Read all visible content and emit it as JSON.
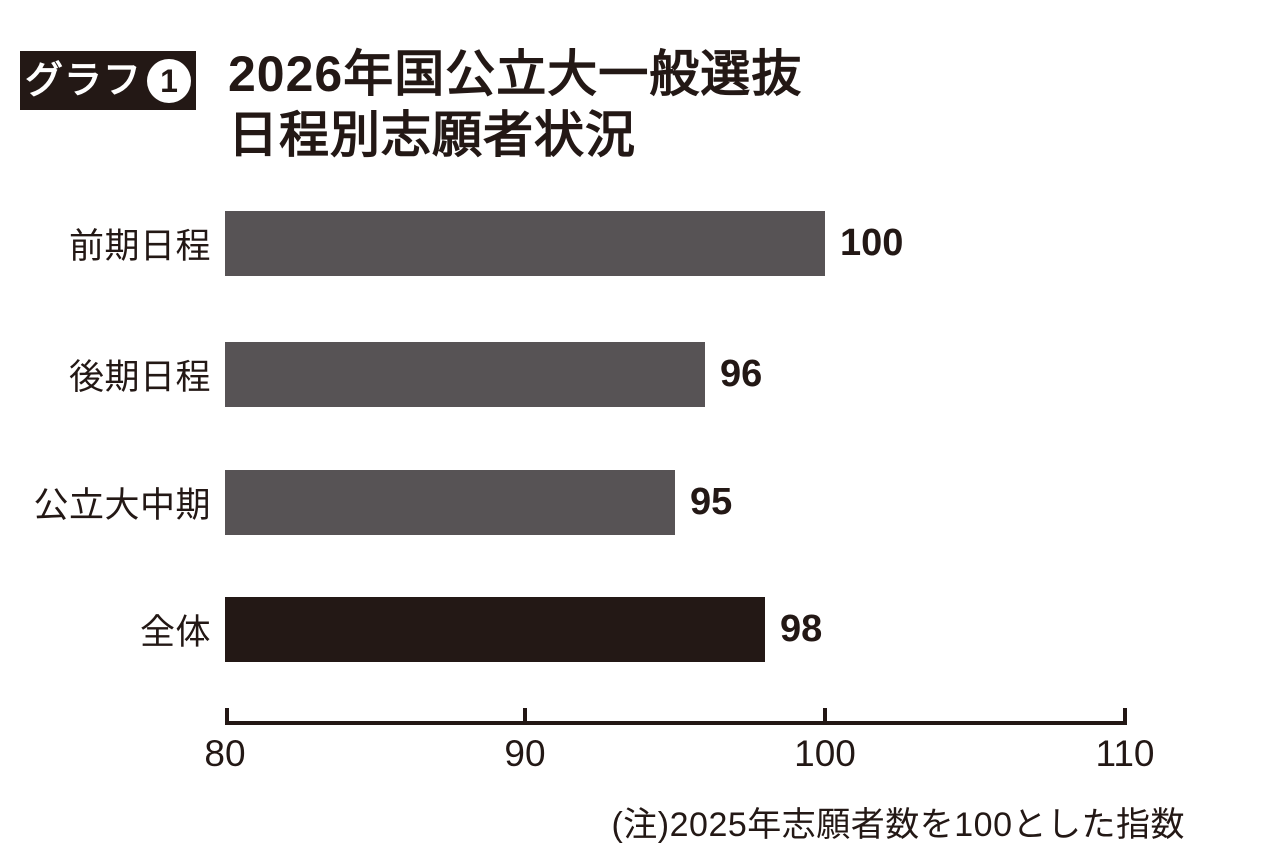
{
  "badge": {
    "label": "グラフ",
    "number": "1",
    "bg": "#231815",
    "fg": "#ffffff"
  },
  "title": {
    "line1": "2026年国公立大一般選抜",
    "line2": "日程別志願者状況"
  },
  "note": "(注)2025年志願者数を100とした指数",
  "colors": {
    "text": "#231815",
    "axis": "#231815",
    "bar_default": "#575355",
    "bar_emphasis": "#231815",
    "background": "#ffffff"
  },
  "chart_data": {
    "type": "bar",
    "orientation": "horizontal",
    "title": "2026年国公立大一般選抜 日程別志願者状況",
    "categories": [
      "前期日程",
      "後期日程",
      "公立大中期",
      "全体"
    ],
    "values": [
      100,
      96,
      95,
      98
    ],
    "emphasized_category": "全体",
    "xlim": [
      80,
      110
    ],
    "xticks": [
      80,
      90,
      100,
      110
    ],
    "grid": false,
    "legend": false,
    "xlabel": "",
    "ylabel": "",
    "note": "(注)2025年志願者数を100とした指数"
  }
}
